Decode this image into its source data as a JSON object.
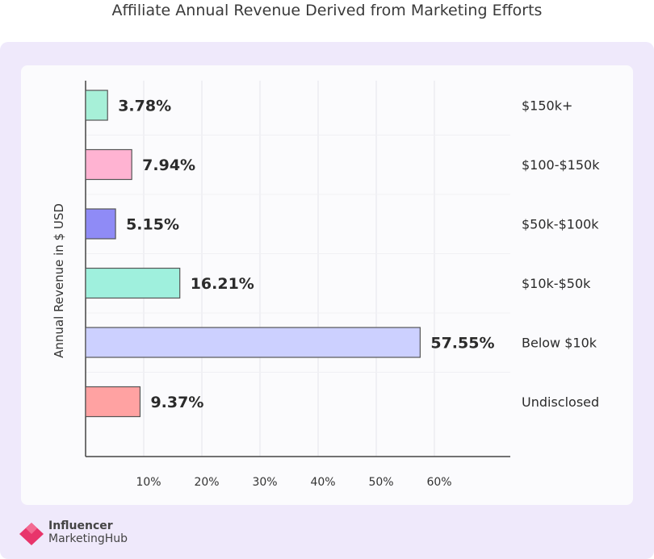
{
  "title": "Affiliate Annual Revenue Derived from Marketing Efforts",
  "logo": {
    "line1": "Influencer",
    "line2": "MarketingHub"
  },
  "colors": {
    "outer_bg": "#efe9fb",
    "card_bg": "#fbfbfd",
    "brand": "#e8356b"
  },
  "chart_data": {
    "type": "bar",
    "orientation": "horizontal",
    "ylabel": "Annual Revenue in $ USD",
    "xlabel": "",
    "xlim": [
      0,
      70
    ],
    "xticks": [
      "10%",
      "20%",
      "30%",
      "40%",
      "50%",
      "60%"
    ],
    "categories": [
      "$150k+",
      "$100-$150k",
      "$50k-$100k",
      "$10k-$50k",
      "Below $10k",
      "Undisclosed"
    ],
    "values": [
      3.78,
      7.94,
      5.15,
      16.21,
      57.55,
      9.37
    ],
    "labels": [
      "3.78%",
      "7.94%",
      "5.15%",
      "16.21%",
      "57.55%",
      "9.37%"
    ],
    "colors": [
      "#a7f0d8",
      "#ffb3d2",
      "#8f8bf6",
      "#9ff0dd",
      "#ccd0ff",
      "#ffa2a2"
    ],
    "grid": true
  }
}
